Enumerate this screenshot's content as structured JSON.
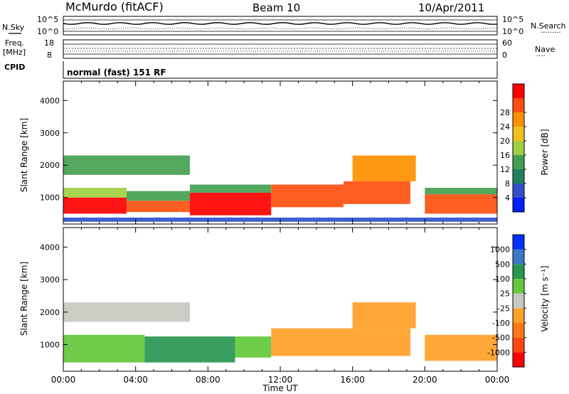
{
  "header": {
    "station": "McMurdo (fitACF)",
    "beam": "Beam 10",
    "date": "10/Apr/2011"
  },
  "param_panel": {
    "nsky_label": "N.Sky",
    "nsearch_label": "N.Search",
    "freq_label_line1": "Freq.",
    "freq_label_line2": "[MHz]",
    "nave_label": "Nave",
    "cpid_label": "CPID",
    "noise_ticks": [
      "10^5",
      "10^0"
    ],
    "freq_ticks": [
      "18",
      "8"
    ],
    "nave_ticks": [
      "60",
      "0"
    ],
    "mode_text": "normal (fast) 151 RF"
  },
  "colors": {
    "power_scale": [
      "#0020ff",
      "#3050c8",
      "#208060",
      "#44a050",
      "#a0d040",
      "#f0c020",
      "#ff9000",
      "#ff5010",
      "#ff0000"
    ],
    "velocity_scale": [
      "#0030ff",
      "#3c78c8",
      "#289650",
      "#64c83c",
      "#c8c8c0",
      "#ffa028",
      "#ff7814",
      "#ff4614",
      "#ff0000"
    ]
  },
  "chart_data": [
    {
      "type": "heatmap",
      "name": "power",
      "ylabel": "Slant Range [km]",
      "ylim": [
        180,
        4600
      ],
      "yticks": [
        "1000",
        "2000",
        "3000",
        "4000"
      ],
      "colorbar_label": "Power [dB]",
      "colorbar_ticks": [
        "4",
        "8",
        "12",
        "16",
        "20",
        "24",
        "28"
      ],
      "colorbar_range": [
        0,
        32
      ],
      "rows": [
        {
          "t0": 0.0,
          "t1": 3.5,
          "r0": 500,
          "r1": 1000,
          "value": 30
        },
        {
          "t0": 0.0,
          "t1": 3.5,
          "r0": 1000,
          "r1": 1300,
          "value": 15
        },
        {
          "t0": 3.5,
          "t1": 7.0,
          "r0": 550,
          "r1": 900,
          "value": 28
        },
        {
          "t0": 3.5,
          "t1": 7.0,
          "r0": 900,
          "r1": 1200,
          "value": 14
        },
        {
          "t0": 7.0,
          "t1": 11.5,
          "r0": 450,
          "r1": 1150,
          "value": 29
        },
        {
          "t0": 7.0,
          "t1": 11.5,
          "r0": 1150,
          "r1": 1400,
          "value": 13
        },
        {
          "t0": 11.5,
          "t1": 15.5,
          "r0": 700,
          "r1": 1400,
          "value": 28
        },
        {
          "t0": 15.5,
          "t1": 19.2,
          "r0": 800,
          "r1": 1500,
          "value": 27
        },
        {
          "t0": 20.0,
          "t1": 24.0,
          "r0": 500,
          "r1": 1100,
          "value": 28
        },
        {
          "t0": 20.0,
          "t1": 24.0,
          "r0": 1100,
          "r1": 1300,
          "value": 14
        },
        {
          "t0": 0.0,
          "t1": 7.0,
          "r0": 1700,
          "r1": 2300,
          "value": 12
        },
        {
          "t0": 16.0,
          "t1": 19.5,
          "r0": 1500,
          "r1": 2300,
          "value": 24
        },
        {
          "t0": 0.0,
          "t1": 24.0,
          "r0": 250,
          "r1": 380,
          "value": 6
        }
      ]
    },
    {
      "type": "heatmap",
      "name": "velocity",
      "ylabel": "Slant Range [km]",
      "xlabel": "Time UT",
      "ylim": [
        180,
        4600
      ],
      "yticks": [
        "1000",
        "2000",
        "3000",
        "4000"
      ],
      "xticks": [
        "00:00",
        "04:00",
        "08:00",
        "12:00",
        "16:00",
        "20:00",
        "00:00"
      ],
      "xlim": [
        0,
        24
      ],
      "colorbar_label": "Velocity [m s⁻¹]",
      "colorbar_ticks": [
        "1000",
        "500",
        "100",
        "25",
        "-25",
        "-100",
        "-500",
        "-1000"
      ],
      "rows": [
        {
          "t0": 0.0,
          "t1": 4.5,
          "r0": 450,
          "r1": 1300,
          "value": 25
        },
        {
          "t0": 4.5,
          "t1": 9.5,
          "r0": 450,
          "r1": 1250,
          "value": 100
        },
        {
          "t0": 9.5,
          "t1": 11.5,
          "r0": 600,
          "r1": 1250,
          "value": 25
        },
        {
          "t0": 11.5,
          "t1": 19.2,
          "r0": 650,
          "r1": 1500,
          "value": -100
        },
        {
          "t0": 16.0,
          "t1": 19.5,
          "r0": 1500,
          "r1": 2300,
          "value": -100
        },
        {
          "t0": 20.0,
          "t1": 24.0,
          "r0": 500,
          "r1": 1300,
          "value": -100
        },
        {
          "t0": 0.0,
          "t1": 7.0,
          "r0": 1700,
          "r1": 2300,
          "value": -25
        }
      ]
    }
  ]
}
